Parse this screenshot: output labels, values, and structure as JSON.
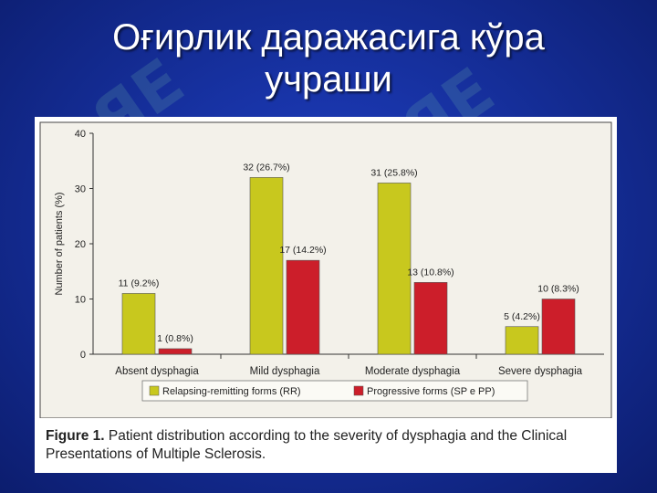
{
  "slide": {
    "title_line1": "Оғирлик даражасига кўра",
    "title_line2": "учраши"
  },
  "colors": {
    "series_rr": "#c8c81e",
    "series_sp": "#cc1e2a",
    "plot_background": "#f3f1ea",
    "slide_background": "#1a36b0"
  },
  "chart_data": {
    "type": "bar",
    "ylabel": "Number of patients (%)",
    "xlabel": "",
    "ylim": [
      0,
      40
    ],
    "yticks": [
      0,
      10,
      20,
      30,
      40
    ],
    "grid": false,
    "legend_position": "bottom",
    "categories": [
      "Absent dysphagia",
      "Mild dysphagia",
      "Moderate dysphagia",
      "Severe dysphagia"
    ],
    "series": [
      {
        "name": "Relapsing-remitting forms (RR)",
        "values": [
          11,
          32,
          31,
          5
        ],
        "labels": [
          "11 (9.2%)",
          "32 (26.7%)",
          "31 (25.8%)",
          "5 (4.2%)"
        ]
      },
      {
        "name": "Progressive forms (SP e PP)",
        "values": [
          1,
          17,
          13,
          10
        ],
        "labels": [
          "1 (0.8%)",
          "17 (14.2%)",
          "13 (10.8%)",
          "10 (8.3%)"
        ]
      }
    ]
  },
  "figure": {
    "caption_label": "Figure 1.",
    "caption_text": "Patient distribution according to the severity of dysphagia and the Clinical Presentations of Multiple Sclerosis."
  }
}
